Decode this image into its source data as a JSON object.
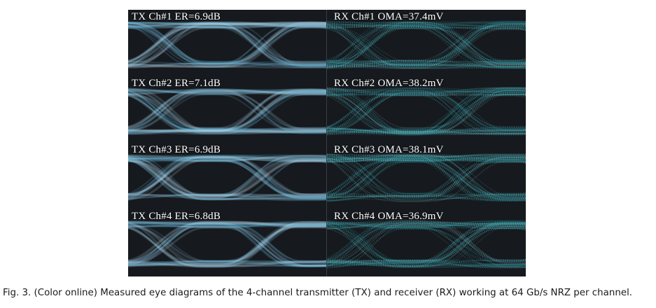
{
  "figure": {
    "tx_panels": [
      {
        "label": "TX Ch#1 ER=6.9dB"
      },
      {
        "label": "TX Ch#2 ER=7.1dB"
      },
      {
        "label": "TX Ch#3 ER=6.9dB"
      },
      {
        "label": "TX Ch#4 ER=6.8dB"
      }
    ],
    "rx_panels": [
      {
        "label": "RX Ch#1 OMA=37.4mV"
      },
      {
        "label": "RX Ch#2 OMA=38.2mV"
      },
      {
        "label": "RX Ch#3 OMA=38.1mV"
      },
      {
        "label": "RX Ch#4 OMA=36.9mV"
      }
    ],
    "colors": {
      "background": "#16191d",
      "tx_trace": "#cfefff",
      "tx_trace_core": "#6fc6ee",
      "rx_trace": "#41c9d4",
      "rx_trace_core": "#9ff0f4"
    }
  },
  "caption": "Fig. 3. (Color online) Measured eye diagrams of the 4-channel transmitter (TX) and receiver (RX) working at 64 Gb/s NRZ per channel."
}
